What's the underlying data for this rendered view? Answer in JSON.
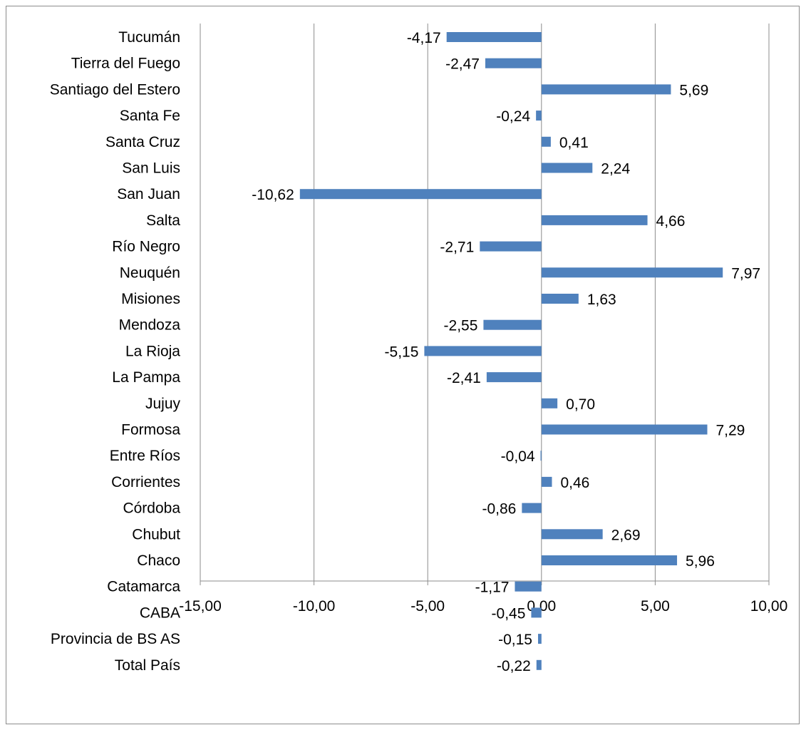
{
  "chart_data": {
    "type": "bar",
    "orientation": "horizontal",
    "title": "",
    "xlabel": "",
    "ylabel": "",
    "xlim": [
      -15,
      10
    ],
    "x_ticks": [
      -15,
      -10,
      -5,
      0,
      5,
      10
    ],
    "x_tick_labels": [
      "-15,00",
      "-10,00",
      "-5,00",
      "0,00",
      "5,00",
      "10,00"
    ],
    "grid": "vertical",
    "legend": "none",
    "bar_color": "#4f81bd",
    "grid_color": "#8c8c8c",
    "categories": [
      "Tucumán",
      "Tierra del Fuego",
      "Santiago del Estero",
      "Santa Fe",
      "Santa Cruz",
      "San Luis",
      "San Juan",
      "Salta",
      "Río Negro",
      "Neuquén",
      "Misiones",
      "Mendoza",
      "La Rioja",
      "La Pampa",
      "Jujuy",
      "Formosa",
      "Entre Ríos",
      "Corrientes",
      "Córdoba",
      "Chubut",
      "Chaco",
      "Catamarca",
      "CABA",
      "Provincia de BS AS",
      "Total País"
    ],
    "values": [
      -4.17,
      -2.47,
      5.69,
      -0.24,
      0.41,
      2.24,
      -10.62,
      4.66,
      -2.71,
      7.97,
      1.63,
      -2.55,
      -5.15,
      -2.41,
      0.7,
      7.29,
      -0.04,
      0.46,
      -0.86,
      2.69,
      5.96,
      -1.17,
      -0.45,
      -0.15,
      -0.22
    ],
    "data_labels": [
      "-4,17",
      "-2,47",
      "5,69",
      "-0,24",
      "0,41",
      "2,24",
      "-10,62",
      "4,66",
      "-2,71",
      "7,97",
      "1,63",
      "-2,55",
      "-5,15",
      "-2,41",
      "0,70",
      "7,29",
      "-0,04",
      "0,46",
      "-0,86",
      "2,69",
      "5,96",
      "-1,17",
      "-0,45",
      "-0,15",
      "-0,22"
    ]
  }
}
